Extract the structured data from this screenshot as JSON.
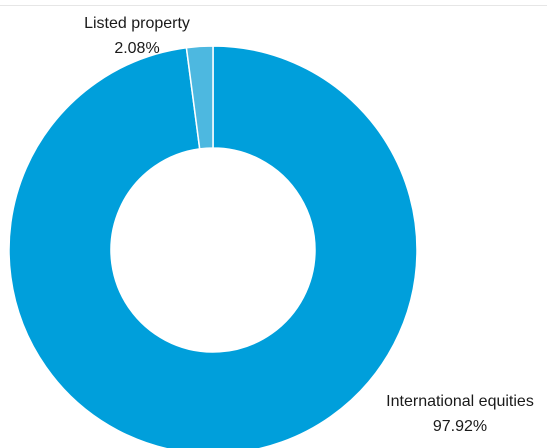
{
  "chart_data": {
    "type": "pie",
    "donut": true,
    "slices": [
      {
        "label": "International equities",
        "value_text": "97.92%",
        "value": 97.92,
        "color": "#009fdb"
      },
      {
        "label": "Listed property",
        "value_text": "2.08%",
        "value": 2.08,
        "color": "#4db8e0"
      }
    ],
    "start": "top, clockwise"
  }
}
